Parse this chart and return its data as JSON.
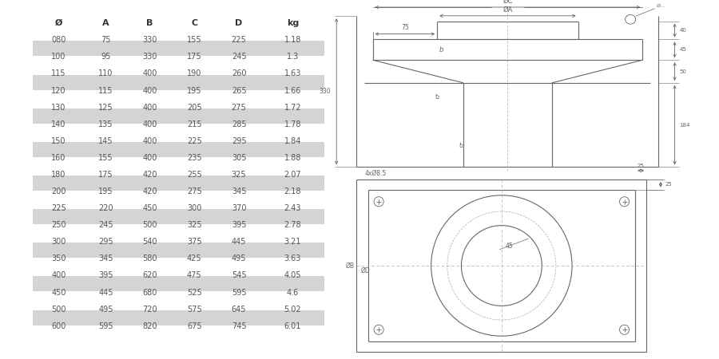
{
  "table_headers": [
    "Ø",
    "A",
    "B",
    "C",
    "D",
    "kg"
  ],
  "table_data": [
    [
      "080",
      "75",
      "330",
      "155",
      "225",
      "1.18"
    ],
    [
      "100",
      "95",
      "330",
      "175",
      "245",
      "1.3"
    ],
    [
      "115",
      "110",
      "400",
      "190",
      "260",
      "1.63"
    ],
    [
      "120",
      "115",
      "400",
      "195",
      "265",
      "1.66"
    ],
    [
      "130",
      "125",
      "400",
      "205",
      "275",
      "1.72"
    ],
    [
      "140",
      "135",
      "400",
      "215",
      "285",
      "1.78"
    ],
    [
      "150",
      "145",
      "400",
      "225",
      "295",
      "1.84"
    ],
    [
      "160",
      "155",
      "400",
      "235",
      "305",
      "1.88"
    ],
    [
      "180",
      "175",
      "420",
      "255",
      "325",
      "2.07"
    ],
    [
      "200",
      "195",
      "420",
      "275",
      "345",
      "2.18"
    ],
    [
      "225",
      "220",
      "450",
      "300",
      "370",
      "2.43"
    ],
    [
      "250",
      "245",
      "500",
      "325",
      "395",
      "2.78"
    ],
    [
      "300",
      "295",
      "540",
      "375",
      "445",
      "3.21"
    ],
    [
      "350",
      "345",
      "580",
      "425",
      "495",
      "3.63"
    ],
    [
      "400",
      "395",
      "620",
      "475",
      "545",
      "4.05"
    ],
    [
      "450",
      "445",
      "680",
      "525",
      "595",
      "4.6"
    ],
    [
      "500",
      "495",
      "720",
      "575",
      "645",
      "5.02"
    ],
    [
      "600",
      "595",
      "820",
      "675",
      "745",
      "6.01"
    ]
  ],
  "shaded_rows": [
    0,
    2,
    4,
    6,
    8,
    10,
    12,
    14,
    16
  ],
  "row_bg_shaded": "#d4d4d4",
  "row_bg_normal": "#ffffff",
  "text_color": "#555555",
  "line_color": "#666666"
}
